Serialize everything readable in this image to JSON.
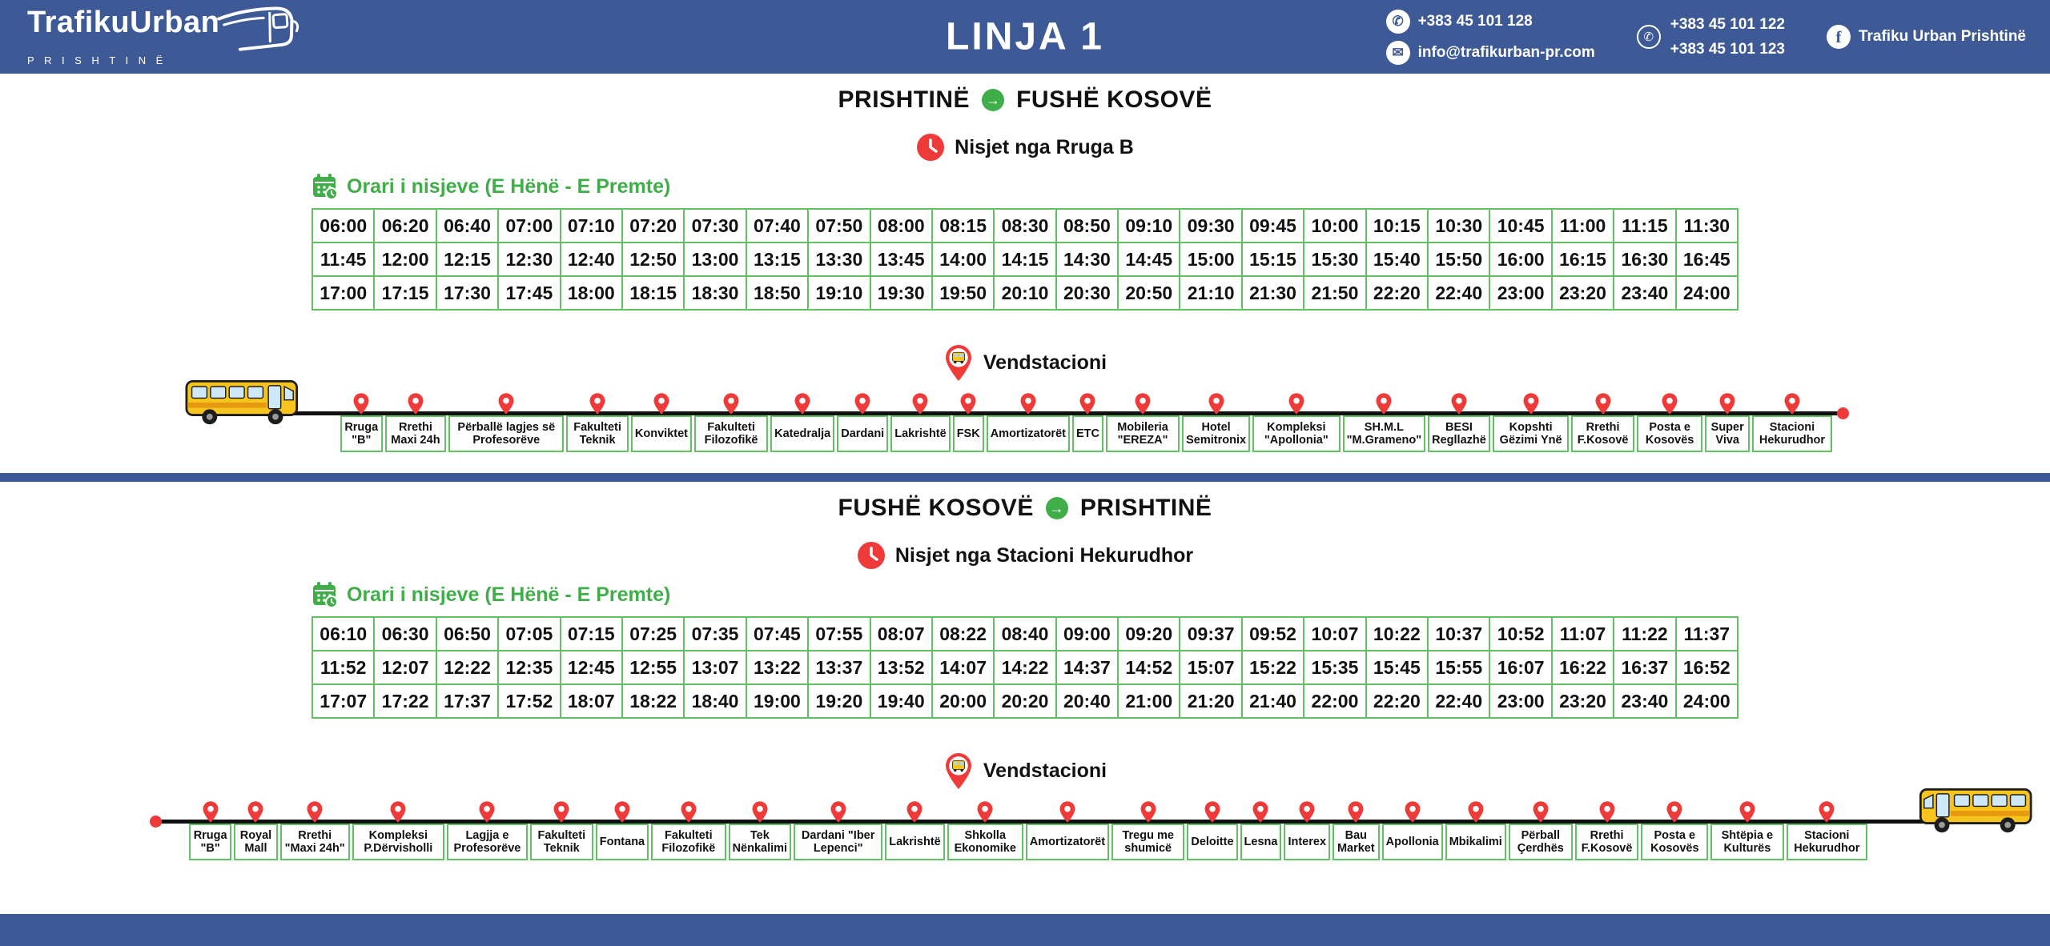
{
  "header": {
    "logo_title": "TrafikuUrban",
    "logo_subtitle": "PRISHTINË",
    "page_title": "LINJA 1",
    "contacts": {
      "phone": "+383 45 101 128",
      "email": "info@trafikurban-pr.com",
      "viber1": "+383 45 101 122",
      "viber2": "+383 45 101 123",
      "facebook": "Trafiku Urban Prishtinë",
      "facebook_glyph": "f",
      "phone_glyph": "✆",
      "email_glyph": "✉",
      "viber_glyph": "✆",
      "arrow_glyph": "→"
    }
  },
  "colors": {
    "header_blue": "#3d5a96",
    "accent_green": "#3fae49",
    "table_border_green": "#62c162",
    "accent_red": "#ef3a3a",
    "bus_yellow": "#F7C41E"
  },
  "sections": [
    {
      "from": "PRISHTINË",
      "to": "FUSHË KOSOVË",
      "departure_label": "Nisjet nga Rruga B",
      "schedule_label": "Orari i nisjeve (E Hënë - E Premte)",
      "station_label": "Vendstacioni",
      "times": [
        [
          "06:00",
          "06:20",
          "06:40",
          "07:00",
          "07:10",
          "07:20",
          "07:30",
          "07:40",
          "07:50",
          "08:00",
          "08:15",
          "08:30",
          "08:50",
          "09:10",
          "09:30",
          "09:45",
          "10:00",
          "10:15",
          "10:30",
          "10:45",
          "11:00",
          "11:15",
          "11:30"
        ],
        [
          "11:45",
          "12:00",
          "12:15",
          "12:30",
          "12:40",
          "12:50",
          "13:00",
          "13:15",
          "13:30",
          "13:45",
          "14:00",
          "14:15",
          "14:30",
          "14:45",
          "15:00",
          "15:15",
          "15:30",
          "15:40",
          "15:50",
          "16:00",
          "16:15",
          "16:30",
          "16:45"
        ],
        [
          "17:00",
          "17:15",
          "17:30",
          "17:45",
          "18:00",
          "18:15",
          "18:30",
          "18:50",
          "19:10",
          "19:30",
          "19:50",
          "20:10",
          "20:30",
          "20:50",
          "21:10",
          "21:30",
          "21:50",
          "22:20",
          "22:40",
          "23:00",
          "23:20",
          "23:40",
          "24:00"
        ]
      ],
      "stops": [
        "Rruga \"B\"",
        "Rrethi Maxi 24h",
        "Përballë lagjes së Profesorëve",
        "Fakulteti Teknik",
        "Konviktet",
        "Fakulteti Filozofikë",
        "Katedralja",
        "Dardani",
        "Lakrishtë",
        "FSK",
        "Amortizatorët",
        "ETC",
        "Mobileria \"EREZA\"",
        "Hotel Semitronix",
        "Kompleksi \"Apollonia\"",
        "SH.M.L \"M.Grameno\"",
        "BESI Regllazhë",
        "Kopshti Gëzimi Ynë",
        "Rrethi F.Kosovë",
        "Posta e Kosovës",
        "Super Viva",
        "Stacioni Hekurudhor"
      ]
    },
    {
      "from": "FUSHË KOSOVË",
      "to": "PRISHTINË",
      "departure_label": "Nisjet nga Stacioni Hekurudhor",
      "schedule_label": "Orari i nisjeve (E Hënë - E Premte)",
      "station_label": "Vendstacioni",
      "times": [
        [
          "06:10",
          "06:30",
          "06:50",
          "07:05",
          "07:15",
          "07:25",
          "07:35",
          "07:45",
          "07:55",
          "08:07",
          "08:22",
          "08:40",
          "09:00",
          "09:20",
          "09:37",
          "09:52",
          "10:07",
          "10:22",
          "10:37",
          "10:52",
          "11:07",
          "11:22",
          "11:37"
        ],
        [
          "11:52",
          "12:07",
          "12:22",
          "12:35",
          "12:45",
          "12:55",
          "13:07",
          "13:22",
          "13:37",
          "13:52",
          "14:07",
          "14:22",
          "14:37",
          "14:52",
          "15:07",
          "15:22",
          "15:35",
          "15:45",
          "15:55",
          "16:07",
          "16:22",
          "16:37",
          "16:52"
        ],
        [
          "17:07",
          "17:22",
          "17:37",
          "17:52",
          "18:07",
          "18:22",
          "18:40",
          "19:00",
          "19:20",
          "19:40",
          "20:00",
          "20:20",
          "20:40",
          "21:00",
          "21:20",
          "21:40",
          "22:00",
          "22:20",
          "22:40",
          "23:00",
          "23:20",
          "23:40",
          "24:00"
        ]
      ],
      "stops": [
        "Rruga \"B\"",
        "Royal Mall",
        "Rrethi \"Maxi 24h\"",
        "Kompleksi P.Dërvisholli",
        "Lagjja e Profesorëve",
        "Fakulteti Teknik",
        "Fontana",
        "Fakulteti Filozofikë",
        "Tek Nënkalimi",
        "Dardani \"Iber Lepenci\"",
        "Lakrishtë",
        "Shkolla Ekonomike",
        "Amortizatorët",
        "Tregu me shumicë",
        "Deloitte",
        "Lesna",
        "Interex",
        "Bau Market",
        "Apollonia",
        "Mbikalimi",
        "Përball Çerdhës",
        "Rrethi F.Kosovë",
        "Posta e Kosovës",
        "Shtëpia e Kulturës",
        "Stacioni Hekurudhor"
      ]
    }
  ]
}
